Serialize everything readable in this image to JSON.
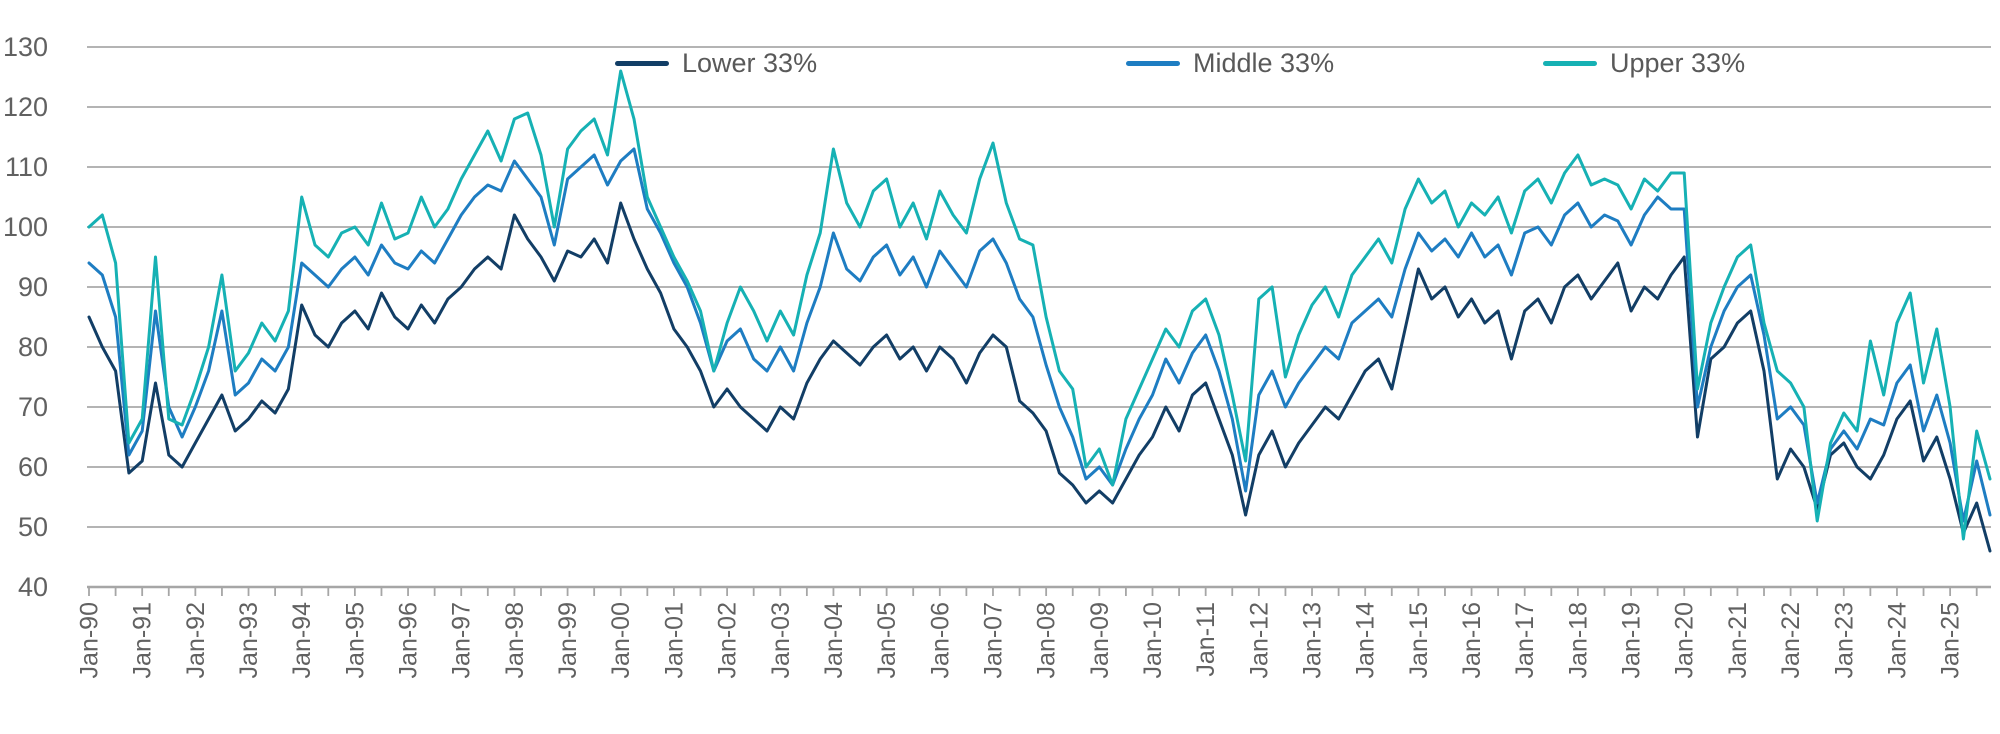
{
  "chart_data": {
    "type": "line",
    "title": "",
    "xlabel": "",
    "ylabel": "",
    "ylim": [
      40,
      130
    ],
    "y_ticks": [
      130,
      120,
      110,
      100,
      90,
      80,
      70,
      60,
      50,
      40
    ],
    "grid": "horizontal",
    "legend_position": "top",
    "frequency": "quarterly estimates read from a monthly line chart",
    "x_axis_tick_labels": [
      "Jan-90",
      "Jan-91",
      "Jan-92",
      "Jan-93",
      "Jan-94",
      "Jan-95",
      "Jan-96",
      "Jan-97",
      "Jan-98",
      "Jan-99",
      "Jan-00",
      "Jan-01",
      "Jan-02",
      "Jan-03",
      "Jan-04",
      "Jan-05",
      "Jan-06",
      "Jan-07",
      "Jan-08",
      "Jan-09",
      "Jan-10",
      "Jan-11",
      "Jan-12",
      "Jan-13",
      "Jan-14",
      "Jan-15",
      "Jan-16",
      "Jan-17",
      "Jan-18",
      "Jan-19",
      "Jan-20",
      "Jan-21",
      "Jan-22",
      "Jan-23",
      "Jan-24",
      "Jan-25"
    ],
    "x": [
      "Jan-90",
      "Apr-90",
      "Jul-90",
      "Oct-90",
      "Jan-91",
      "Apr-91",
      "Jul-91",
      "Oct-91",
      "Jan-92",
      "Apr-92",
      "Jul-92",
      "Oct-92",
      "Jan-93",
      "Apr-93",
      "Jul-93",
      "Oct-93",
      "Jan-94",
      "Apr-94",
      "Jul-94",
      "Oct-94",
      "Jan-95",
      "Apr-95",
      "Jul-95",
      "Oct-95",
      "Jan-96",
      "Apr-96",
      "Jul-96",
      "Oct-96",
      "Jan-97",
      "Apr-97",
      "Jul-97",
      "Oct-97",
      "Jan-98",
      "Apr-98",
      "Jul-98",
      "Oct-98",
      "Jan-99",
      "Apr-99",
      "Jul-99",
      "Oct-99",
      "Jan-00",
      "Apr-00",
      "Jul-00",
      "Oct-00",
      "Jan-01",
      "Apr-01",
      "Jul-01",
      "Oct-01",
      "Jan-02",
      "Apr-02",
      "Jul-02",
      "Oct-02",
      "Jan-03",
      "Apr-03",
      "Jul-03",
      "Oct-03",
      "Jan-04",
      "Apr-04",
      "Jul-04",
      "Oct-04",
      "Jan-05",
      "Apr-05",
      "Jul-05",
      "Oct-05",
      "Jan-06",
      "Apr-06",
      "Jul-06",
      "Oct-06",
      "Jan-07",
      "Apr-07",
      "Jul-07",
      "Oct-07",
      "Jan-08",
      "Apr-08",
      "Jul-08",
      "Oct-08",
      "Jan-09",
      "Apr-09",
      "Jul-09",
      "Oct-09",
      "Jan-10",
      "Apr-10",
      "Jul-10",
      "Oct-10",
      "Jan-11",
      "Apr-11",
      "Jul-11",
      "Oct-11",
      "Jan-12",
      "Apr-12",
      "Jul-12",
      "Oct-12",
      "Jan-13",
      "Apr-13",
      "Jul-13",
      "Oct-13",
      "Jan-14",
      "Apr-14",
      "Jul-14",
      "Oct-14",
      "Jan-15",
      "Apr-15",
      "Jul-15",
      "Oct-15",
      "Jan-16",
      "Apr-16",
      "Jul-16",
      "Oct-16",
      "Jan-17",
      "Apr-17",
      "Jul-17",
      "Oct-17",
      "Jan-18",
      "Apr-18",
      "Jul-18",
      "Oct-18",
      "Jan-19",
      "Apr-19",
      "Jul-19",
      "Oct-19",
      "Jan-20",
      "Apr-20",
      "Jul-20",
      "Oct-20",
      "Jan-21",
      "Apr-21",
      "Jul-21",
      "Oct-21",
      "Jan-22",
      "Apr-22",
      "Jul-22",
      "Oct-22",
      "Jan-23",
      "Apr-23",
      "Jul-23",
      "Oct-23",
      "Jan-24",
      "Apr-24",
      "Jul-24",
      "Oct-24",
      "Jan-25",
      "Apr-25",
      "Jul-25",
      "Sep-25"
    ],
    "series": [
      {
        "name": "Lower 33%",
        "color": "#123e66",
        "values": [
          85,
          80,
          76,
          59,
          61,
          74,
          62,
          60,
          64,
          68,
          72,
          66,
          68,
          71,
          69,
          73,
          87,
          82,
          80,
          84,
          86,
          83,
          89,
          85,
          83,
          87,
          84,
          88,
          90,
          93,
          95,
          93,
          102,
          98,
          95,
          91,
          96,
          95,
          98,
          94,
          104,
          98,
          93,
          89,
          83,
          80,
          76,
          70,
          73,
          70,
          68,
          66,
          70,
          68,
          74,
          78,
          81,
          79,
          77,
          80,
          82,
          78,
          80,
          76,
          80,
          78,
          74,
          79,
          82,
          80,
          71,
          69,
          66,
          59,
          57,
          54,
          56,
          54,
          58,
          62,
          65,
          70,
          66,
          72,
          74,
          68,
          62,
          52,
          62,
          66,
          60,
          64,
          67,
          70,
          68,
          72,
          76,
          78,
          73,
          83,
          93,
          88,
          90,
          85,
          88,
          84,
          86,
          78,
          86,
          88,
          84,
          90,
          92,
          88,
          91,
          94,
          86,
          90,
          88,
          92,
          95,
          65,
          78,
          80,
          84,
          86,
          76,
          58,
          63,
          60,
          53,
          62,
          64,
          60,
          58,
          62,
          68,
          71,
          61,
          65,
          58,
          49,
          54,
          46
        ]
      },
      {
        "name": "Middle 33%",
        "color": "#1e7dc2",
        "values": [
          94,
          92,
          85,
          62,
          66,
          86,
          70,
          65,
          70,
          76,
          86,
          72,
          74,
          78,
          76,
          80,
          94,
          92,
          90,
          93,
          95,
          92,
          97,
          94,
          93,
          96,
          94,
          98,
          102,
          105,
          107,
          106,
          111,
          108,
          105,
          97,
          108,
          110,
          112,
          107,
          111,
          113,
          103,
          99,
          94,
          90,
          84,
          76,
          81,
          83,
          78,
          76,
          80,
          76,
          84,
          90,
          99,
          93,
          91,
          95,
          97,
          92,
          95,
          90,
          96,
          93,
          90,
          96,
          98,
          94,
          88,
          85,
          77,
          70,
          65,
          58,
          60,
          57,
          63,
          68,
          72,
          78,
          74,
          79,
          82,
          76,
          68,
          56,
          72,
          76,
          70,
          74,
          77,
          80,
          78,
          84,
          86,
          88,
          85,
          93,
          99,
          96,
          98,
          95,
          99,
          95,
          97,
          92,
          99,
          100,
          97,
          102,
          104,
          100,
          102,
          101,
          97,
          102,
          105,
          103,
          103,
          70,
          80,
          86,
          90,
          92,
          82,
          68,
          70,
          67,
          54,
          63,
          66,
          63,
          68,
          67,
          74,
          77,
          66,
          72,
          64,
          51,
          61,
          52
        ]
      },
      {
        "name": "Upper 33%",
        "color": "#16b1b4",
        "values": [
          100,
          102,
          94,
          64,
          68,
          95,
          68,
          67,
          73,
          80,
          92,
          76,
          79,
          84,
          81,
          86,
          105,
          97,
          95,
          99,
          100,
          97,
          104,
          98,
          99,
          105,
          100,
          103,
          108,
          112,
          116,
          111,
          118,
          119,
          112,
          100,
          113,
          116,
          118,
          112,
          126,
          118,
          105,
          100,
          95,
          91,
          86,
          76,
          84,
          90,
          86,
          81,
          86,
          82,
          92,
          99,
          113,
          104,
          100,
          106,
          108,
          100,
          104,
          98,
          106,
          102,
          99,
          108,
          114,
          104,
          98,
          97,
          85,
          76,
          73,
          60,
          63,
          57,
          68,
          73,
          78,
          83,
          80,
          86,
          88,
          82,
          72,
          61,
          88,
          90,
          75,
          82,
          87,
          90,
          85,
          92,
          95,
          98,
          94,
          103,
          108,
          104,
          106,
          100,
          104,
          102,
          105,
          99,
          106,
          108,
          104,
          109,
          112,
          107,
          108,
          107,
          103,
          108,
          106,
          109,
          109,
          73,
          84,
          90,
          95,
          97,
          84,
          76,
          74,
          70,
          51,
          64,
          69,
          66,
          81,
          72,
          84,
          89,
          74,
          83,
          70,
          48,
          66,
          58
        ]
      }
    ],
    "style": {
      "gridline_color": "#b4b4b4",
      "axis_color": "#a6a6a6",
      "tick_label_color": "#616161",
      "legend_text_color": "#595959"
    }
  }
}
